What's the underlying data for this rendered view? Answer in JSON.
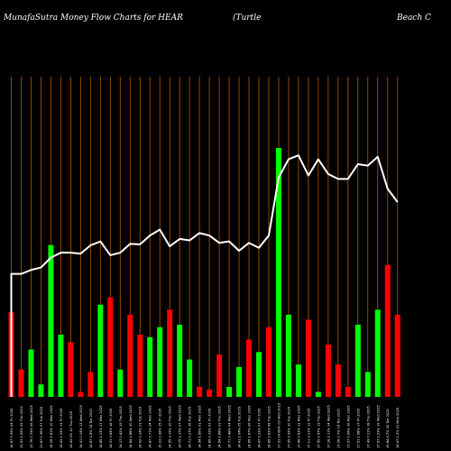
{
  "header": {
    "left": "MunafaSutra  Money Flow  Charts for HEAR",
    "middle": "(Turtle",
    "right": "Beach C"
  },
  "chart_data": {
    "type": "bar",
    "title": "MunafaSutra  Money Flow  Charts for HEAR (Turtle Beach C",
    "colors": {
      "up": "#00ff00",
      "down": "#ff0000",
      "price_line": "#ffffff",
      "grid": "#b35900",
      "background": "#000000"
    },
    "categories": [
      "14.67 0.99% 04 Fri 2025",
      "13.53 2.52% 05 Thu 2025",
      "13.76 0.74% 06 Wed 2025",
      "13.87 0.36% 07 Tue 2025",
      "14.26 2.81% 10 Mon 2025",
      "14.43 1.19% 11 Fri 2025",
      "14.43 0% 12 Thu 2025",
      "14.41 0.14% 13 Wed 2025",
      "14.67 1.8% 14 Tue 2025",
      "14.85 1.23% 17 Mon 2025",
      "14.31 3.64% 18 Fri 2025",
      "14.37 0.42% 19 Thu 2025",
      "14.64 1.88% 20 Wed 2025",
      "14.62 0.14% 21 Tue 2025",
      "14.87 1.71% 24 Mon 2025",
      "15.03 1.08% 25 Fri 2025",
      "14.55 3.19% 26 Thu 2025",
      "14.75 1.37% 27 Wed 2025",
      "14.71 0.27% 28 Tue 2025",
      "14.94 1.56% 01 Mon 2025",
      "14.89 0.33% 02 Fri 2025",
      "14.64 1.68% 03 Thu 2025",
      "14.71 0.48% 04 Wed 2025",
      "14.41 2.04% 05 Tue 2025",
      "14.65 1.67% 06 Mon 2025",
      "14.47 1.23% 07 Fri 2025",
      "14.85 2.63% 08 Thu 2025",
      "17.03 14.68% 09 Wed 2025",
      "17.55 3.05% 10 Tue 2025",
      "17.66 0.63% 11 Mon 2025",
      "17.11 3.11% 12 Fri 2025",
      "17.55 2.57% 13 Thu 2025",
      "17.18 2.11% 14 Wed 2025",
      "17.06 0.7% 15 Tue 2025",
      "17.07 0.06% 16 Mon 2025",
      "17.51 2.58% 17 Fri 2025",
      "17.49 0.11% 18 Thu 2025",
      "17.67 1.03% 19 Wed 2025",
      "16.84 4.7% 20 Tue 2025",
      "16.47 2.2% 21 Mon 2025"
    ],
    "money_flow_direction": [
      "down",
      "down",
      "up",
      "up",
      "up",
      "up",
      "down",
      "down",
      "down",
      "up",
      "down",
      "up",
      "down",
      "down",
      "up",
      "up",
      "down",
      "up",
      "up",
      "down",
      "down",
      "down",
      "up",
      "up",
      "down",
      "up",
      "down",
      "up",
      "up",
      "up",
      "down",
      "up",
      "down",
      "down",
      "down",
      "up",
      "up",
      "up",
      "down",
      "down"
    ],
    "money_flow_values": [
      34,
      11,
      19,
      5,
      61,
      25,
      22,
      2,
      10,
      37,
      40,
      11,
      33,
      25,
      24,
      28,
      35,
      29,
      15,
      4,
      3,
      17,
      4,
      12,
      23,
      18,
      28,
      100,
      33,
      13,
      31,
      2,
      21,
      13,
      4,
      29,
      10,
      35,
      53,
      33
    ],
    "price_line": [
      14.67,
      14.67,
      14.75,
      14.8,
      15.0,
      15.1,
      15.1,
      15.08,
      15.25,
      15.33,
      15.05,
      15.1,
      15.28,
      15.27,
      15.45,
      15.57,
      15.23,
      15.38,
      15.35,
      15.5,
      15.45,
      15.3,
      15.33,
      15.14,
      15.3,
      15.2,
      15.45,
      16.63,
      17.0,
      17.08,
      16.67,
      17.0,
      16.7,
      16.6,
      16.6,
      16.9,
      16.87,
      17.05,
      16.4,
      16.13
    ],
    "y_range_price": [
      12.17,
      17.67
    ],
    "y_range_money_flow": [
      0,
      100
    ],
    "grid": true,
    "legend": "none"
  }
}
